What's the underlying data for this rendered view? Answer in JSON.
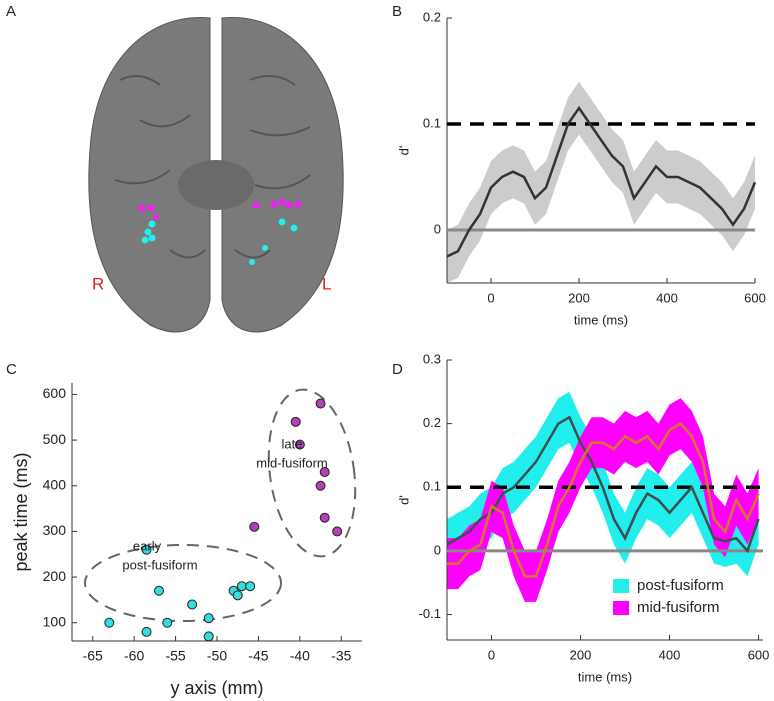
{
  "panel_labels": [
    "A",
    "B",
    "C",
    "D"
  ],
  "brain": {
    "labels": [
      "R",
      "L"
    ]
  },
  "chart_data": [
    {
      "type": "line",
      "xlabel": "time (ms)",
      "ylabel": "d'",
      "x": [
        -100,
        -75,
        -50,
        -25,
        0,
        25,
        50,
        75,
        100,
        125,
        150,
        175,
        200,
        225,
        250,
        275,
        300,
        325,
        350,
        375,
        400,
        425,
        450,
        475,
        500,
        525,
        550,
        575,
        600
      ],
      "series": [
        {
          "color": "#333333",
          "band_color": "#cccccc",
          "error": 0.025,
          "values": [
            -0.025,
            -0.02,
            0.0,
            0.015,
            0.04,
            0.05,
            0.055,
            0.05,
            0.03,
            0.04,
            0.07,
            0.1,
            0.115,
            0.1,
            0.085,
            0.07,
            0.06,
            0.03,
            0.045,
            0.06,
            0.05,
            0.05,
            0.045,
            0.04,
            0.03,
            0.02,
            0.005,
            0.02,
            0.045
          ]
        }
      ],
      "threshold": 0.1,
      "xlim": [
        -100,
        600
      ],
      "xticks": [
        0,
        200,
        400,
        600
      ],
      "ylim": [
        -0.05,
        0.2
      ],
      "yticks": [
        0,
        0.1,
        0.2
      ]
    },
    {
      "type": "scatter",
      "xlabel": "y axis (mm)",
      "ylabel": "peak time (ms)",
      "series": [
        {
          "color": "#33dddd",
          "x": [
            -58.5,
            -57,
            -56,
            -58.5,
            -63,
            -53,
            -51,
            -51,
            -48,
            -47.5,
            -47,
            -46
          ],
          "values": [
            260,
            170,
            100,
            80,
            100,
            140,
            110,
            70,
            170,
            160,
            180,
            180
          ]
        },
        {
          "color": "#b53fb5",
          "x": [
            -37.5,
            -40.5,
            -40,
            -37,
            -37.5,
            -37,
            -35.5,
            -45.5
          ],
          "values": [
            580,
            540,
            490,
            430,
            400,
            330,
            300,
            310
          ]
        }
      ],
      "annotations": [
        "early",
        "post-fusiform",
        "late",
        "mid-fusiform"
      ],
      "xlim": [
        -67.5,
        -32.5
      ],
      "xticks": [
        -65,
        -60,
        -55,
        -50,
        -45,
        -40,
        -35
      ],
      "ylim": [
        60,
        625
      ],
      "yticks": [
        100,
        200,
        300,
        400,
        500,
        600
      ]
    },
    {
      "type": "line",
      "xlabel": "time (ms)",
      "ylabel": "d'",
      "x": [
        -100,
        -75,
        -50,
        -25,
        0,
        25,
        50,
        75,
        100,
        125,
        150,
        175,
        200,
        225,
        250,
        275,
        300,
        325,
        350,
        375,
        400,
        425,
        450,
        475,
        500,
        525,
        550,
        575,
        600
      ],
      "series": [
        {
          "name": "post-fusiform",
          "color": "#3d4f4f",
          "band_color": "#22eeee",
          "error": 0.04,
          "values": [
            0.01,
            0.02,
            0.03,
            0.05,
            0.06,
            0.09,
            0.1,
            0.12,
            0.14,
            0.17,
            0.2,
            0.21,
            0.17,
            0.14,
            0.1,
            0.05,
            0.02,
            0.06,
            0.09,
            0.08,
            0.06,
            0.08,
            0.1,
            0.06,
            0.02,
            0.015,
            0.02,
            0.0,
            0.05
          ]
        },
        {
          "name": "mid-fusiform",
          "color": "#d2762a",
          "band_color": "#ff00ff",
          "error": 0.04,
          "values": [
            -0.02,
            -0.02,
            0.0,
            0.01,
            0.07,
            0.06,
            0.0,
            -0.04,
            -0.04,
            0.01,
            0.07,
            0.1,
            0.14,
            0.17,
            0.17,
            0.16,
            0.18,
            0.17,
            0.18,
            0.16,
            0.19,
            0.2,
            0.18,
            0.14,
            0.05,
            0.03,
            0.08,
            0.05,
            0.09
          ]
        }
      ],
      "threshold": 0.1,
      "legend": "lower right",
      "xlim": [
        -100,
        610
      ],
      "xticks": [
        0,
        200,
        400,
        600
      ],
      "ylim": [
        -0.14,
        0.3
      ],
      "yticks": [
        -0.1,
        0,
        0.1,
        0.2,
        0.3
      ]
    }
  ]
}
